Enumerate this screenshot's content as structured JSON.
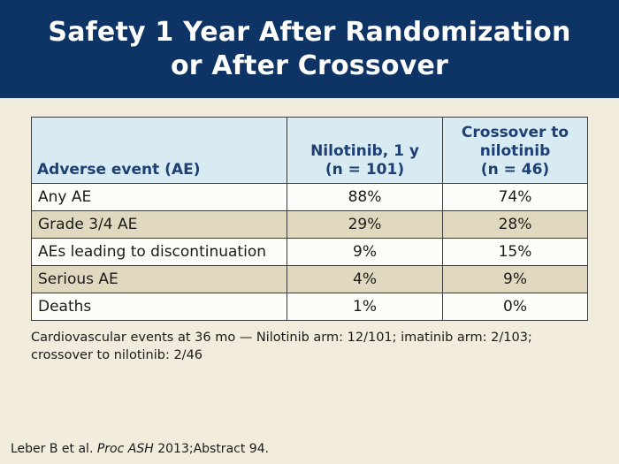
{
  "slide": {
    "title_line1": "Safety 1 Year After Randomization",
    "title_line2": "or After Crossover"
  },
  "table": {
    "headers": {
      "col1": "Adverse event (AE)",
      "col2_line1": "Nilotinib, 1 y",
      "col2_line2": "(n = 101)",
      "col3_line1": "Crossover to",
      "col3_line2": "nilotinib",
      "col3_line3": "(n = 46)"
    },
    "rows": [
      {
        "event": "Any AE",
        "nilotinib": "88%",
        "crossover": "74%"
      },
      {
        "event": "Grade 3/4 AE",
        "nilotinib": "29%",
        "crossover": "28%"
      },
      {
        "event": "AEs leading to discontinuation",
        "nilotinib": "9%",
        "crossover": "15%"
      },
      {
        "event": "Serious AE",
        "nilotinib": "4%",
        "crossover": "9%"
      },
      {
        "event": "Deaths",
        "nilotinib": "1%",
        "crossover": "0%"
      }
    ]
  },
  "footnote": "Cardiovascular events at 36 mo — Nilotinib arm: 12/101; imatinib arm: 2/103; crossover to nilotinib: 2/46",
  "citation": {
    "authors": "Leber B et al.",
    "journal": "Proc ASH",
    "details": "2013;Abstract 94."
  },
  "colors": {
    "title_background": "#0d3464",
    "page_background": "#f1ecdb",
    "header_background": "#d9ebf2",
    "header_text": "#1d3f73",
    "stripe_row": "#e0d9c0"
  }
}
